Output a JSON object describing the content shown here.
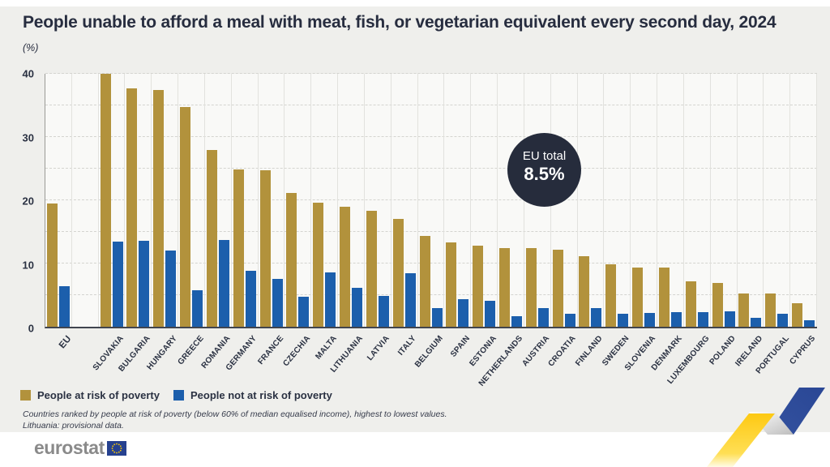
{
  "header": {
    "title": "People unable to afford a meal with meat, fish, or vegetarian equivalent every second day, 2024",
    "unit": "(%)"
  },
  "badge": {
    "label": "EU total",
    "value": "8.5%"
  },
  "legend": {
    "items": [
      {
        "label": "People at risk of poverty",
        "color": "#b2923c"
      },
      {
        "label": "People not at risk of poverty",
        "color": "#1c5fac"
      }
    ]
  },
  "footnotes": [
    "Countries ranked by people at risk of poverty (below 60% of median equalised income), highest to lowest values.",
    "Lithuania: provisional data."
  ],
  "logo": {
    "text": "eurostat"
  },
  "colors": {
    "at_risk": "#b2923c",
    "not_at_risk": "#1c5fac",
    "badge_background": "#262c3c",
    "page_background": "#efefec",
    "plot_background": "#f9f9f7",
    "text": "#2a3142"
  },
  "chart_data": {
    "type": "bar",
    "title": "People unable to afford a meal with meat, fish, or vegetarian equivalent every second day, 2024",
    "ylabel": "(%)",
    "ylim": [
      0,
      40
    ],
    "yticks": [
      0,
      10,
      20,
      30,
      40
    ],
    "grid": true,
    "legend_position": "bottom-left",
    "annotation": {
      "label": "EU total",
      "value": "8.5%"
    },
    "categories": [
      "EU",
      "SLOVAKIA",
      "BULGARIA",
      "HUNGARY",
      "GREECE",
      "ROMANIA",
      "GERMANY",
      "FRANCE",
      "CZECHIA",
      "MALTA",
      "LITHUANIA",
      "LATVIA",
      "ITALY",
      "BELGIUM",
      "SPAIN",
      "ESTONIA",
      "NETHERLANDS",
      "AUSTRIA",
      "CROATIA",
      "FINLAND",
      "SWEDEN",
      "SLOVENIA",
      "DENMARK",
      "LUXEMBOURG",
      "POLAND",
      "IRELAND",
      "PORTUGAL",
      "CYPRUS"
    ],
    "series": [
      {
        "name": "People at risk of poverty",
        "color": "#b2923c",
        "values": [
          19.5,
          40.0,
          37.7,
          37.4,
          34.8,
          27.9,
          24.9,
          24.8,
          21.2,
          19.6,
          19.0,
          18.3,
          17.0,
          14.4,
          13.3,
          12.8,
          12.5,
          12.5,
          12.2,
          11.2,
          9.9,
          9.4,
          9.3,
          7.2,
          6.9,
          5.3,
          5.3,
          3.7
        ]
      },
      {
        "name": "People not at risk of poverty",
        "color": "#1c5fac",
        "values": [
          6.4,
          13.4,
          13.6,
          12.0,
          5.8,
          13.7,
          8.9,
          7.6,
          4.7,
          8.6,
          6.2,
          4.9,
          8.5,
          3.0,
          4.3,
          4.1,
          1.7,
          2.9,
          2.1,
          2.9,
          2.1,
          2.2,
          2.3,
          2.3,
          2.4,
          1.4,
          2.1,
          1.0
        ]
      }
    ]
  }
}
